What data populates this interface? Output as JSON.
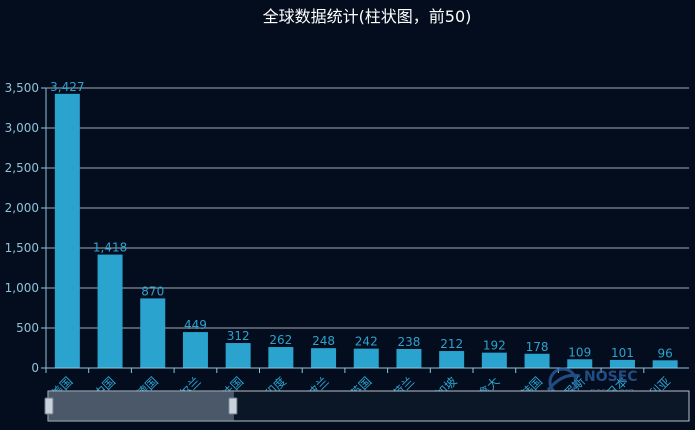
{
  "chart_data": {
    "type": "bar",
    "title": "全球数据统计(柱状图，前50)",
    "categories": [
      "美国",
      "中国",
      "德国",
      "爱尔兰",
      "法国",
      "印度",
      "波兰",
      "英国",
      "荷兰",
      "新加坡",
      "加拿大",
      "韩国",
      "俄罗斯",
      "日本",
      "澳大利亚"
    ],
    "values": [
      3427,
      1418,
      870,
      449,
      312,
      262,
      248,
      242,
      238,
      212,
      192,
      178,
      109,
      101,
      96
    ],
    "value_labels": [
      "3,427",
      "1,418",
      "870",
      "449",
      "312",
      "262",
      "248",
      "242",
      "238",
      "212",
      "192",
      "178",
      "109",
      "101",
      "96"
    ],
    "ylim": [
      0,
      3500
    ],
    "yticks": [
      0,
      500,
      1000,
      1500,
      2000,
      2500,
      3000,
      3500
    ],
    "ytick_labels": [
      "0",
      "500",
      "1,000",
      "1,500",
      "2,000",
      "2,500",
      "3,000",
      "3,500"
    ],
    "grid": true,
    "bar_color": "#2aa3cf",
    "label_color": "#2aa3cf",
    "axis_color": "#8fc3d9",
    "grid_color": "#d7dfe6",
    "background": "#040d1d",
    "title_color": "#ffffff",
    "zoom": {
      "start_fraction": 0.0,
      "end_fraction": 0.29
    }
  },
  "watermark": {
    "text": "NOSEC",
    "subtext": "nosec.org"
  }
}
